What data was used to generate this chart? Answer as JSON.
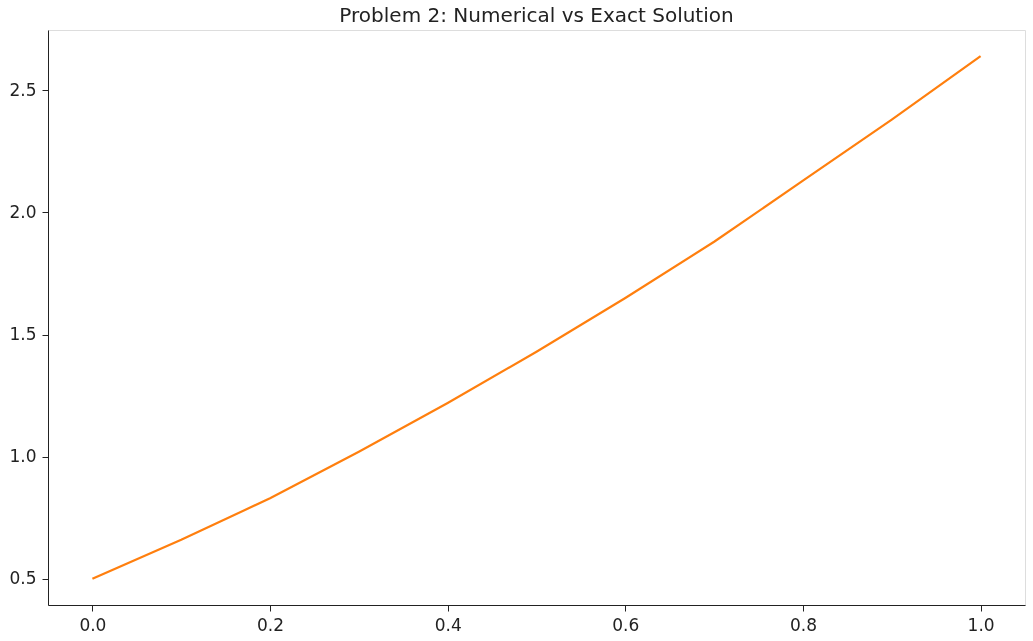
{
  "chart_data": {
    "type": "line",
    "title": "Problem 2: Numerical vs Exact Solution",
    "x": [
      0.0,
      0.1,
      0.2,
      0.3,
      0.4,
      0.5,
      0.6,
      0.7,
      0.8,
      0.9,
      1.0
    ],
    "series": [
      {
        "color": "#ff7f0e",
        "values": [
          0.5,
          0.66,
          0.83,
          1.02,
          1.22,
          1.43,
          1.65,
          1.88,
          2.13,
          2.38,
          2.64
        ]
      }
    ],
    "xlim": [
      -0.05,
      1.05
    ],
    "ylim": [
      0.393,
      2.747
    ],
    "xticks": [
      {
        "value": 0.0,
        "label": "0.0"
      },
      {
        "value": 0.2,
        "label": "0.2"
      },
      {
        "value": 0.4,
        "label": "0.4"
      },
      {
        "value": 0.6,
        "label": "0.6"
      },
      {
        "value": 0.8,
        "label": "0.8"
      },
      {
        "value": 1.0,
        "label": "1.0"
      }
    ],
    "yticks": [
      {
        "value": 0.5,
        "label": "0.5"
      },
      {
        "value": 1.0,
        "label": "1.0"
      },
      {
        "value": 1.5,
        "label": "1.5"
      },
      {
        "value": 2.0,
        "label": "2.0"
      },
      {
        "value": 2.5,
        "label": "2.5"
      }
    ],
    "grid": false,
    "legend": false,
    "marker": "none",
    "line_style": "solid"
  }
}
